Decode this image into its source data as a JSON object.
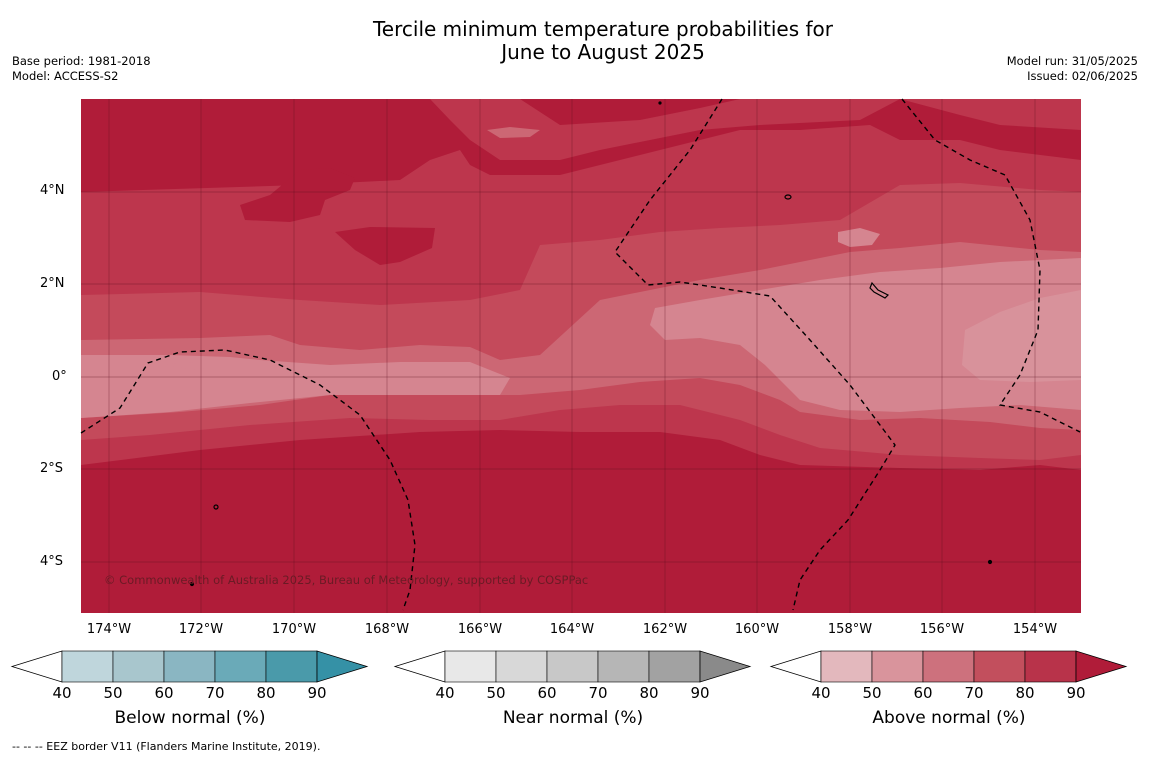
{
  "header": {
    "title_line1": "Tercile minimum temperature probabilities for",
    "title_line2": "June to August 2025",
    "base_period": "Base period: 1981-2018",
    "model": "Model: ACCESS-S2",
    "model_run": "Model run: 31/05/2025",
    "issued": "Issued: 02/06/2025"
  },
  "map": {
    "lat_labels": [
      "4°N",
      "2°N",
      "0°",
      "2°S",
      "4°S"
    ],
    "lon_labels": [
      "174°W",
      "172°W",
      "170°W",
      "168°W",
      "166°W",
      "164°W",
      "162°W",
      "160°W",
      "158°W",
      "156°W",
      "154°W"
    ],
    "copyright": "© Commonwealth of Australia 2025, Bureau of Meteorology, supported by COSPPac",
    "colors": {
      "above_50": "#e3b8bd",
      "above_60": "#d9949c",
      "above_70": "#cd717d",
      "above_80": "#c24f5d",
      "above_90": "#b8334a",
      "above_max": "#b01c39"
    }
  },
  "colorbars": [
    {
      "label": "Below normal (%)",
      "ticks": [
        "40",
        "50",
        "60",
        "70",
        "80",
        "90"
      ],
      "colors": [
        "#bfd6dc",
        "#a8c6cd",
        "#8ab6c2",
        "#6aaab8",
        "#4a9aaa",
        "#3591a6"
      ]
    },
    {
      "label": "Near normal (%)",
      "ticks": [
        "40",
        "50",
        "60",
        "70",
        "80",
        "90"
      ],
      "colors": [
        "#e8e8e8",
        "#d8d8d8",
        "#c8c8c8",
        "#b6b6b6",
        "#a2a2a2",
        "#8a8a8a"
      ]
    },
    {
      "label": "Above normal (%)",
      "ticks": [
        "40",
        "50",
        "60",
        "70",
        "80",
        "90"
      ],
      "colors": [
        "#e3b8bd",
        "#d9949c",
        "#cd717d",
        "#c24f5d",
        "#b8334a",
        "#b01c39"
      ]
    }
  ],
  "footnote": "--  --  -- EEZ border V11 (Flanders Marine Institute, 2019)."
}
